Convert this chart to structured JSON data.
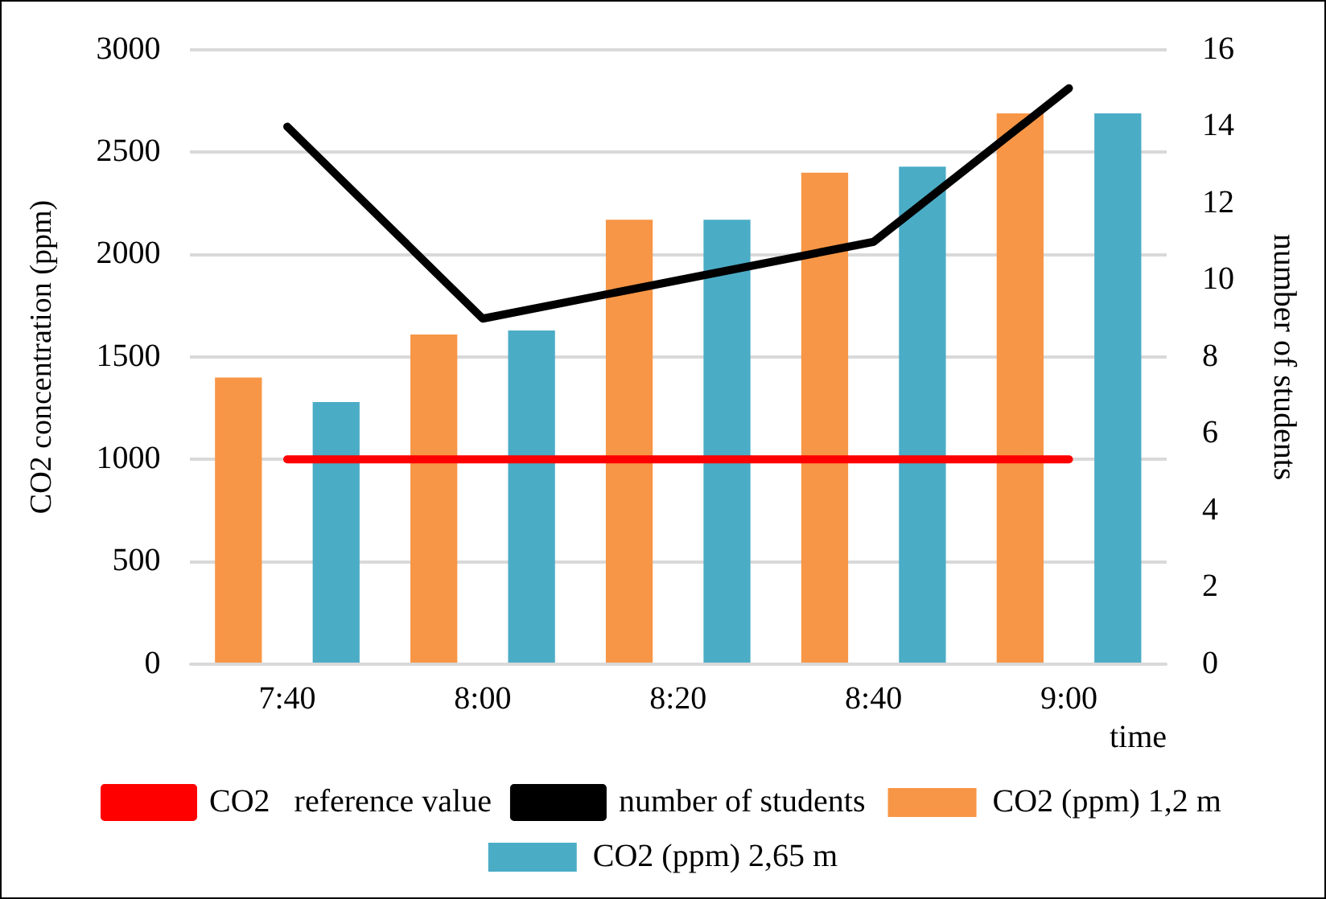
{
  "chart_data": {
    "type": "bar",
    "xlabel": "time",
    "ylabel": "CO2 concentration (ppm)",
    "y2label": "number of students",
    "categories": [
      "7:40",
      "8:00",
      "8:20",
      "8:40",
      "9:00"
    ],
    "series": [
      {
        "name": "CO2 (ppm) 1,2 m",
        "color": "#f79646",
        "values": [
          1400,
          1610,
          2170,
          2400,
          2690
        ]
      },
      {
        "name": "CO2 (ppm) 2,65 m",
        "color": "#4bacc6",
        "values": [
          1280,
          1630,
          2170,
          2430,
          2690
        ]
      },
      {
        "name": "CO2   reference value",
        "type": "line",
        "color": "#ff0000",
        "values": [
          1000,
          1000,
          1000,
          1000,
          1000
        ]
      },
      {
        "name": "number of students",
        "type": "line",
        "axis": "y2",
        "color": "#000000",
        "values": [
          14,
          9,
          10,
          11,
          15
        ]
      }
    ],
    "ylim": [
      0,
      3000
    ],
    "yticks": [
      0,
      500,
      1000,
      1500,
      2000,
      2500,
      3000
    ],
    "y2lim": [
      0,
      16
    ],
    "y2ticks": [
      0,
      2,
      4,
      6,
      8,
      10,
      12,
      14,
      16
    ],
    "grid": "y",
    "legend": "bottom",
    "marker": "none"
  }
}
